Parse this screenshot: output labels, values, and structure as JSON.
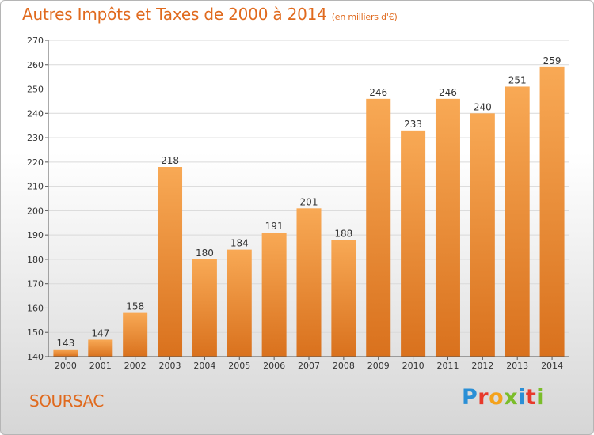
{
  "header": {
    "title": "Autres Impôts et Taxes de 2000 à 2014",
    "subtitle": "(en milliers d'€)"
  },
  "footer": {
    "commune": "SOURSAC",
    "brand_letters": [
      "P",
      "r",
      "o",
      "x",
      "i",
      "t",
      "i"
    ],
    "brand_colors": [
      "#2a8fd6",
      "#e8392b",
      "#f4a21c",
      "#7bbd2a",
      "#2a8fd6",
      "#e8392b",
      "#7bbd2a"
    ]
  },
  "colors": {
    "bar_light": "#f8a955",
    "bar_dark": "#d9711d",
    "grid": "#d9d9d9",
    "axis": "#555555",
    "label": "#333333"
  },
  "chart_data": {
    "type": "bar",
    "categories": [
      "2000",
      "2001",
      "2002",
      "2003",
      "2004",
      "2005",
      "2006",
      "2007",
      "2008",
      "2009",
      "2010",
      "2011",
      "2012",
      "2013",
      "2014"
    ],
    "values": [
      143,
      147,
      158,
      218,
      180,
      184,
      191,
      201,
      188,
      246,
      233,
      246,
      240,
      251,
      259
    ],
    "ylim": [
      140,
      270
    ],
    "yticks": [
      140,
      150,
      160,
      170,
      180,
      190,
      200,
      210,
      220,
      230,
      240,
      250,
      260,
      270
    ],
    "grid": true,
    "data_labels": true
  }
}
